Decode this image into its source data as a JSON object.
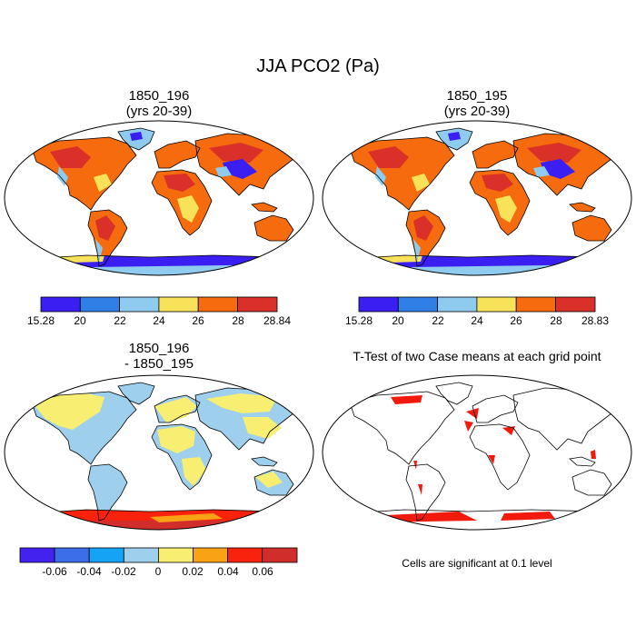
{
  "title": "JJA PCO2 (Pa)",
  "panels": [
    {
      "id": "p1",
      "title_line1": "1850_196",
      "title_line2": "(yrs 20-39)"
    },
    {
      "id": "p2",
      "title_line1": "1850_195",
      "title_line2": "(yrs 20-39)"
    },
    {
      "id": "p3",
      "title_line1": "1850_196",
      "title_line2": "- 1850_195"
    },
    {
      "id": "p4",
      "title_line1": "T-Test of two Case means at each grid point",
      "title_line2": ""
    }
  ],
  "colorbars": {
    "cb1": {
      "colors": [
        "#3a1ef2",
        "#2f7fe6",
        "#8ecbef",
        "#f8e25a",
        "#f56b0e",
        "#d9302a"
      ],
      "labels": [
        "15.28",
        "20",
        "22",
        "24",
        "26",
        "28",
        "28.84"
      ]
    },
    "cb2": {
      "colors": [
        "#3a1ef2",
        "#2f7fe6",
        "#8ecbef",
        "#f8e25a",
        "#f56b0e",
        "#d9302a"
      ],
      "labels": [
        "15.28",
        "20",
        "22",
        "24",
        "26",
        "28",
        "28.83"
      ]
    },
    "cb3": {
      "colors": [
        "#4322f0",
        "#3b6ee8",
        "#14a3f5",
        "#9ed0ee",
        "#f7ee72",
        "#f8a214",
        "#f9220d",
        "#d12d2a"
      ],
      "labels": [
        "-0.06",
        "-0.04",
        "-0.02",
        "0",
        "0.02",
        "0.04",
        "0.06"
      ]
    }
  },
  "footnote": "Cells are significant at 0.1 level",
  "colors": {
    "ocean": "#ffffff",
    "coast": "#000000",
    "abs_land": "#f56b0e",
    "abs_high": "#d9302a",
    "abs_low": "#3a1ef2",
    "abs_mid": "#8ecbef",
    "abs_yellow": "#f8e25a",
    "diff_yellow": "#f7ee72",
    "diff_blue": "#9ed0ee",
    "diff_red": "#f9220d",
    "diff_dark": "#d12d2a",
    "diff_orange": "#f8a214",
    "sig": "#f21a0c"
  }
}
